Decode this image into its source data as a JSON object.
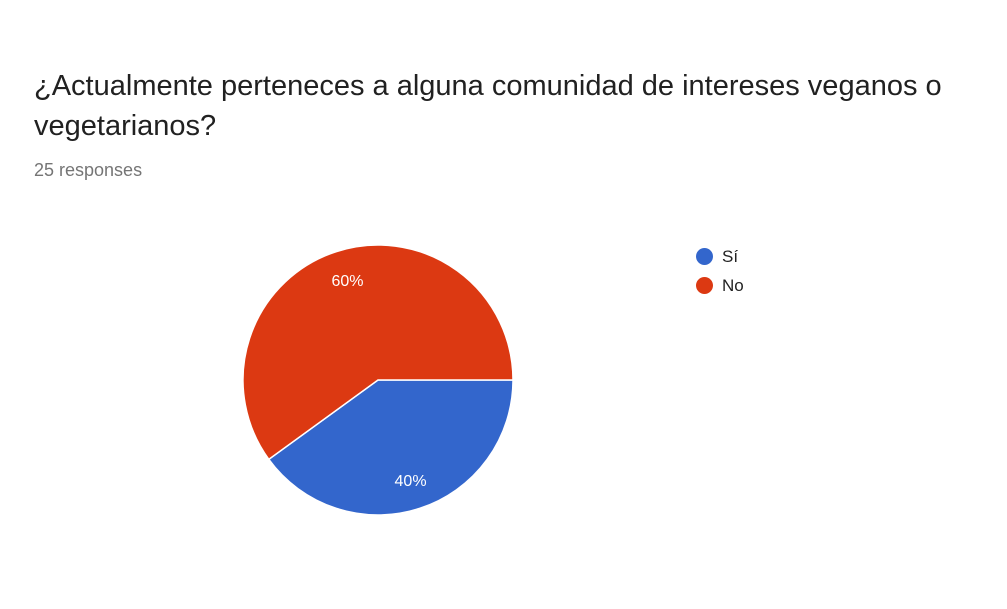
{
  "title": "¿Actualmente perteneces a alguna comunidad de intereses veganos o vegetarianos?",
  "subtitle": "25 responses",
  "chart_data": {
    "type": "pie",
    "categories": [
      "Sí",
      "No"
    ],
    "values": [
      40,
      60
    ],
    "labels": [
      "40%",
      "60%"
    ],
    "colors": [
      "#3366cc",
      "#dc3912"
    ],
    "legend_position": "right"
  }
}
